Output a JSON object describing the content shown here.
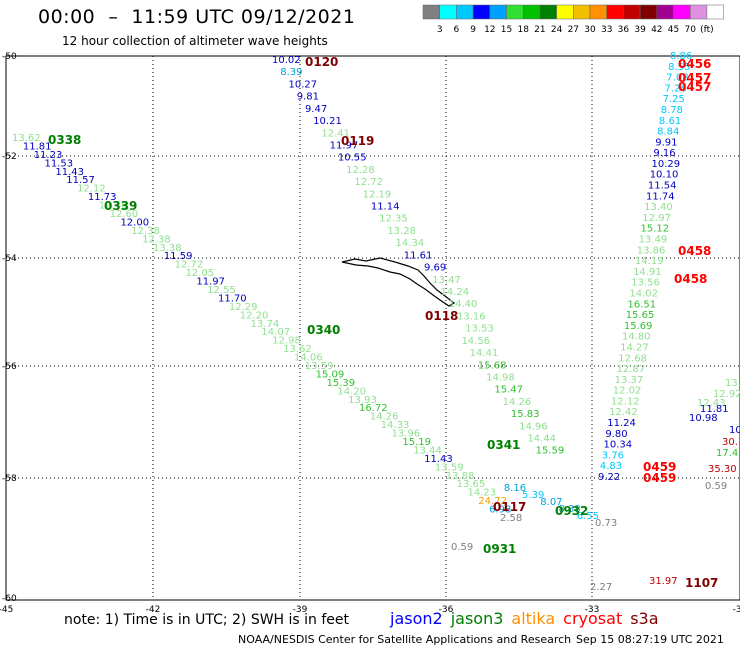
{
  "header": {
    "title": "00:00  –  11:59 UTC 09/12/2021",
    "subtitle": "12 hour collection of altimeter wave heights"
  },
  "colorbar": {
    "colors": [
      "#808080",
      "#00ffff",
      "#00c8ff",
      "#0000ff",
      "#00a0ff",
      "#30e030",
      "#00c000",
      "#008000",
      "#ffff00",
      "#f0c000",
      "#ff9000",
      "#ff0000",
      "#c00000",
      "#800000",
      "#a00090",
      "#ff00ff",
      "#e090e0",
      "#ffffff"
    ],
    "labels": [
      "3",
      "6",
      "9",
      "12",
      "15",
      "18",
      "21",
      "24",
      "27",
      "30",
      "33",
      "36",
      "39",
      "42",
      "45",
      "70",
      "(ft)"
    ]
  },
  "map": {
    "lon_ticks": [
      "-45",
      "-42",
      "-39",
      "-36",
      "-33",
      "-30"
    ],
    "lat_ticks": [
      "-50",
      "-52",
      "-54",
      "-56",
      "-58",
      "-60"
    ]
  },
  "tracks": [
    {
      "label": "0338",
      "color": "#008000",
      "points": [
        [
          "13.62",
          "#90e090"
        ],
        [
          "11.81",
          "#0000c0"
        ],
        [
          "11.23",
          "#0000c0"
        ],
        [
          "11.53",
          "#0000c0"
        ],
        [
          "11.43",
          "#0000c0"
        ],
        [
          "11.57",
          "#0000c0"
        ],
        [
          "12.12",
          "#90e090"
        ],
        [
          "11.73",
          "#0000c0"
        ],
        [
          "12.46",
          "#90e090"
        ],
        [
          "12.60",
          "#90e090"
        ],
        [
          "12.00",
          "#0000c0"
        ],
        [
          "12.38",
          "#90e090"
        ],
        [
          "12.38",
          "#90e090"
        ],
        [
          "13.38",
          "#90e090"
        ],
        [
          "11.59",
          "#0000c0"
        ],
        [
          "12.72",
          "#90e090"
        ],
        [
          "12.05",
          "#90e090"
        ],
        [
          "11.97",
          "#0000c0"
        ],
        [
          "12.55",
          "#90e090"
        ],
        [
          "11.70",
          "#0000c0"
        ],
        [
          "12.29",
          "#90e090"
        ],
        [
          "12.20",
          "#90e090"
        ],
        [
          "13.74",
          "#90e090"
        ],
        [
          "14.07",
          "#90e090"
        ],
        [
          "12.98",
          "#90e090"
        ],
        [
          "13.62",
          "#90e090"
        ],
        [
          "14.06",
          "#90e090"
        ],
        [
          "13.59",
          "#90e090"
        ],
        [
          "15.09",
          "#30c030"
        ],
        [
          "15.39",
          "#30c030"
        ],
        [
          "14.20",
          "#90e090"
        ],
        [
          "13.93",
          "#90e090"
        ],
        [
          "16.72",
          "#30c030"
        ],
        [
          "14.26",
          "#90e090"
        ],
        [
          "14.33",
          "#90e090"
        ],
        [
          "13.96",
          "#90e090"
        ],
        [
          "15.19",
          "#30c030"
        ],
        [
          "13.44",
          "#90e090"
        ],
        [
          "11.43",
          "#0000c0"
        ],
        [
          "13.59",
          "#90e090"
        ],
        [
          "13.88",
          "#90e090"
        ],
        [
          "13.65",
          "#90e090"
        ],
        [
          "14.23",
          "#90e090"
        ],
        [
          "24.72",
          "#f0a000"
        ],
        [
          "6.98",
          "#00a0e0"
        ],
        [
          "2.58",
          "#808080"
        ]
      ]
    },
    {
      "label": "0120",
      "color": "#800000",
      "points": [
        [
          "10.02",
          "#0000c0"
        ],
        [
          "8.39",
          "#00a0e0"
        ],
        [
          "10.27",
          "#0000c0"
        ],
        [
          "9.81",
          "#0000c0"
        ],
        [
          "9.47",
          "#0000c0"
        ],
        [
          "10.21",
          "#0000c0"
        ],
        [
          "12.41",
          "#90e090"
        ],
        [
          "11.97",
          "#0000c0"
        ],
        [
          "10.55",
          "#0000c0"
        ],
        [
          "12.28",
          "#90e090"
        ],
        [
          "12.72",
          "#90e090"
        ],
        [
          "12.19",
          "#90e090"
        ],
        [
          "11.14",
          "#0000c0"
        ],
        [
          "12.35",
          "#90e090"
        ],
        [
          "13.28",
          "#90e090"
        ],
        [
          "14.34",
          "#90e090"
        ],
        [
          "11.61",
          "#0000c0"
        ],
        [
          "9.69",
          "#0000c0"
        ],
        [
          "13.47",
          "#90e090"
        ],
        [
          "14.24",
          "#90e090"
        ],
        [
          "14.40",
          "#90e090"
        ],
        [
          "13.16",
          "#90e090"
        ],
        [
          "13.53",
          "#90e090"
        ],
        [
          "14.56",
          "#90e090"
        ],
        [
          "14.41",
          "#90e090"
        ],
        [
          "15.68",
          "#30c030"
        ],
        [
          "14.98",
          "#90e090"
        ],
        [
          "15.47",
          "#30c030"
        ],
        [
          "14.26",
          "#90e090"
        ],
        [
          "15.83",
          "#30c030"
        ],
        [
          "14.96",
          "#90e090"
        ],
        [
          "14.44",
          "#90e090"
        ],
        [
          "15.59",
          "#30c030"
        ],
        [
          "8.16",
          "#00a0e0"
        ],
        [
          "5.39",
          "#00c8ff"
        ],
        [
          "8.07",
          "#00a0e0"
        ],
        [
          "8.38",
          "#00a0e0"
        ],
        [
          "6.55",
          "#00c8ff"
        ],
        [
          "0.73",
          "#808080"
        ]
      ]
    },
    {
      "label": "0456",
      "color": "#c00000",
      "points": [
        [
          "8.86",
          "#00c8ff"
        ],
        [
          "8.55",
          "#00c8ff"
        ],
        [
          "7.08",
          "#00c8ff"
        ],
        [
          "7.26",
          "#00c8ff"
        ],
        [
          "7.25",
          "#00c8ff"
        ],
        [
          "8.78",
          "#00c8ff"
        ],
        [
          "8.61",
          "#00c8ff"
        ],
        [
          "8.84",
          "#00c8ff"
        ],
        [
          "9.91",
          "#0000c0"
        ],
        [
          "9.16",
          "#0000c0"
        ],
        [
          "10.29",
          "#0000c0"
        ],
        [
          "10.10",
          "#0000c0"
        ],
        [
          "11.54",
          "#0000c0"
        ],
        [
          "11.74",
          "#0000c0"
        ],
        [
          "13.40",
          "#90e090"
        ],
        [
          "12.97",
          "#90e090"
        ],
        [
          "15.12",
          "#30c030"
        ],
        [
          "13.49",
          "#90e090"
        ],
        [
          "13.86",
          "#90e090"
        ],
        [
          "14.19",
          "#90e090"
        ],
        [
          "14.91",
          "#90e090"
        ],
        [
          "13.56",
          "#90e090"
        ],
        [
          "14.02",
          "#90e090"
        ],
        [
          "16.51",
          "#30c030"
        ],
        [
          "15.65",
          "#30c030"
        ],
        [
          "15.69",
          "#30c030"
        ],
        [
          "14.80",
          "#90e090"
        ],
        [
          "14.27",
          "#90e090"
        ],
        [
          "12.68",
          "#90e090"
        ],
        [
          "12.87",
          "#90e090"
        ],
        [
          "13.37",
          "#90e090"
        ],
        [
          "12.02",
          "#90e090"
        ],
        [
          "12.12",
          "#90e090"
        ],
        [
          "12.42",
          "#90e090"
        ],
        [
          "11.24",
          "#0000c0"
        ],
        [
          "9.80",
          "#0000c0"
        ],
        [
          "10.34",
          "#0000c0"
        ],
        [
          "3.76",
          "#00c8ff"
        ],
        [
          "4.83",
          "#00c8ff"
        ],
        [
          "9.22",
          "#0000c0"
        ]
      ]
    },
    {
      "label": "east",
      "color": "#c00000",
      "points": [
        [
          "13.",
          "#90e090"
        ],
        [
          "12.92",
          "#90e090"
        ],
        [
          "12.43",
          "#90e090"
        ],
        [
          "11.81",
          "#0000c0"
        ],
        [
          "10.98",
          "#0000c0"
        ],
        [
          "10",
          "#0000c0"
        ],
        [
          "30.",
          "#c00000"
        ],
        [
          "17.4",
          "#30c030"
        ],
        [
          "35.30",
          "#c00000"
        ],
        [
          "0.59",
          "#808080"
        ]
      ]
    },
    {
      "label": "misc",
      "color": "#808080",
      "points": [
        [
          "0.59",
          "#808080"
        ],
        [
          "2.27",
          "#808080"
        ],
        [
          "31.97",
          "#c00000"
        ]
      ]
    }
  ],
  "pass_labels": [
    {
      "text": "0120",
      "color": "#800000"
    },
    {
      "text": "0119",
      "color": "#800000"
    },
    {
      "text": "0118",
      "color": "#800000"
    },
    {
      "text": "0117",
      "color": "#800000"
    },
    {
      "text": "0338",
      "color": "#008000"
    },
    {
      "text": "0339",
      "color": "#008000"
    },
    {
      "text": "0340",
      "color": "#008000"
    },
    {
      "text": "0341",
      "color": "#008000"
    },
    {
      "text": "0932",
      "color": "#008000"
    },
    {
      "text": "0931",
      "color": "#008000"
    },
    {
      "text": "0456",
      "color": "#ff0000"
    },
    {
      "text": "0457",
      "color": "#ff0000"
    },
    {
      "text": "0457",
      "color": "#ff0000"
    },
    {
      "text": "0458",
      "color": "#ff0000"
    },
    {
      "text": "0458",
      "color": "#ff0000"
    },
    {
      "text": "0459",
      "color": "#ff0000"
    },
    {
      "text": "0459",
      "color": "#ff0000"
    },
    {
      "text": "1107",
      "color": "#800000"
    }
  ],
  "footer": {
    "note": "note:  1) Time is in UTC;  2) SWH is in feet",
    "legend": [
      {
        "label": "jason2",
        "color": "#0000ff"
      },
      {
        "label": "jason3",
        "color": "#008000"
      },
      {
        "label": "altika",
        "color": "#ff9000"
      },
      {
        "label": "cryosat",
        "color": "#ff0000"
      },
      {
        "label": "s3a",
        "color": "#800000"
      }
    ],
    "credit": "NOAA/NESDIS Center for Satellite Applications and Research",
    "timestamp": "Sep 15 08:27:19 UTC 2021"
  }
}
